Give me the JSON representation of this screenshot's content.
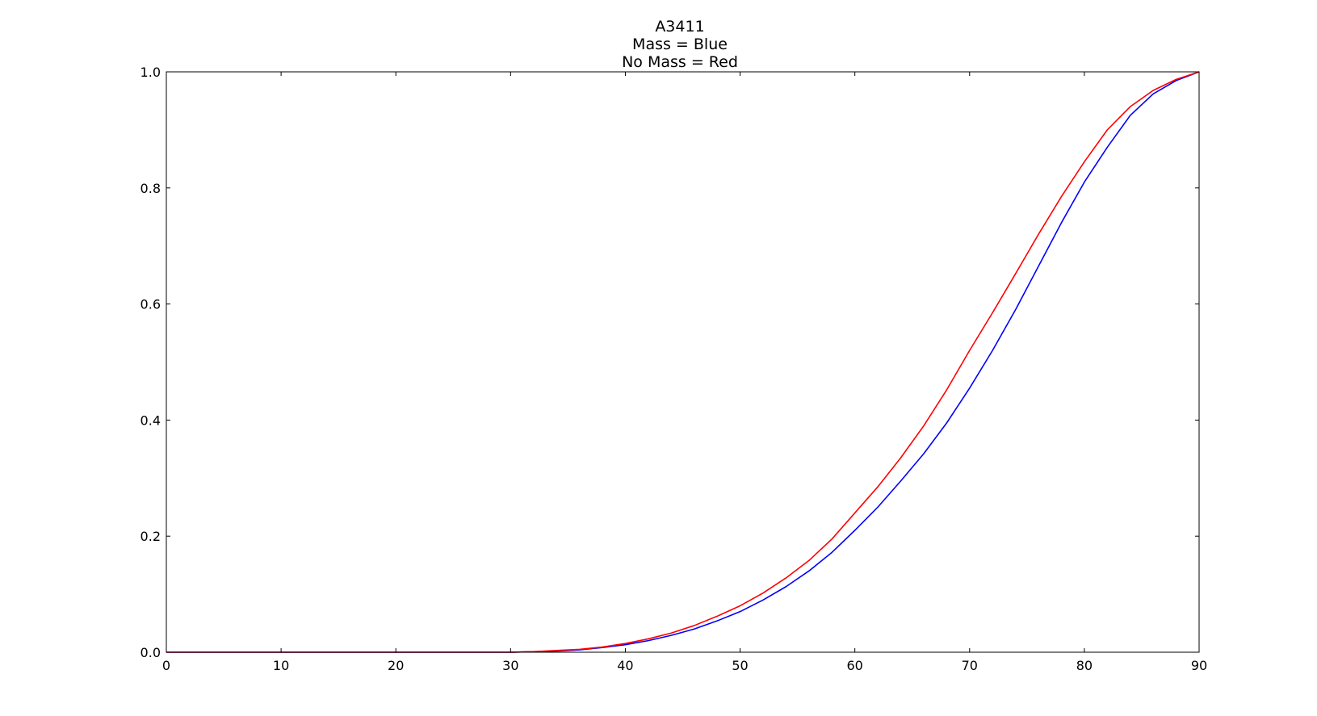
{
  "chart_data": {
    "type": "line",
    "title_lines": [
      "A3411",
      "Mass = Blue",
      "No Mass = Red"
    ],
    "xlabel": "",
    "ylabel": "",
    "xlim": [
      0,
      90
    ],
    "ylim": [
      0.0,
      1.0
    ],
    "x_ticks": [
      0,
      10,
      20,
      30,
      40,
      50,
      60,
      70,
      80,
      90
    ],
    "x_tick_labels": [
      "0",
      "10",
      "20",
      "30",
      "40",
      "50",
      "60",
      "70",
      "80",
      "90"
    ],
    "y_ticks": [
      0.0,
      0.2,
      0.4,
      0.6,
      0.8,
      1.0
    ],
    "y_tick_labels": [
      "0.0",
      "0.2",
      "0.4",
      "0.6",
      "0.8",
      "1.0"
    ],
    "grid": false,
    "legend": "none",
    "series": [
      {
        "color": "#0000ff",
        "points": [
          [
            0,
            0
          ],
          [
            10,
            0
          ],
          [
            20,
            0
          ],
          [
            30,
            0
          ],
          [
            32,
            0.001
          ],
          [
            34,
            0.002
          ],
          [
            36,
            0.004
          ],
          [
            38,
            0.008
          ],
          [
            40,
            0.013
          ],
          [
            42,
            0.02
          ],
          [
            44,
            0.029
          ],
          [
            46,
            0.04
          ],
          [
            48,
            0.054
          ],
          [
            50,
            0.07
          ],
          [
            52,
            0.09
          ],
          [
            54,
            0.113
          ],
          [
            56,
            0.14
          ],
          [
            58,
            0.172
          ],
          [
            60,
            0.21
          ],
          [
            62,
            0.25
          ],
          [
            64,
            0.295
          ],
          [
            66,
            0.342
          ],
          [
            68,
            0.395
          ],
          [
            70,
            0.455
          ],
          [
            72,
            0.52
          ],
          [
            74,
            0.59
          ],
          [
            76,
            0.665
          ],
          [
            78,
            0.74
          ],
          [
            80,
            0.81
          ],
          [
            82,
            0.87
          ],
          [
            84,
            0.925
          ],
          [
            86,
            0.962
          ],
          [
            88,
            0.985
          ],
          [
            90,
            1.0
          ]
        ]
      },
      {
        "color": "#ff0000",
        "points": [
          [
            0,
            0
          ],
          [
            10,
            0
          ],
          [
            20,
            0
          ],
          [
            30,
            0
          ],
          [
            32,
            0.001
          ],
          [
            34,
            0.003
          ],
          [
            36,
            0.005
          ],
          [
            38,
            0.009
          ],
          [
            40,
            0.015
          ],
          [
            42,
            0.023
          ],
          [
            44,
            0.033
          ],
          [
            46,
            0.046
          ],
          [
            48,
            0.062
          ],
          [
            50,
            0.08
          ],
          [
            52,
            0.102
          ],
          [
            54,
            0.128
          ],
          [
            56,
            0.158
          ],
          [
            58,
            0.195
          ],
          [
            60,
            0.24
          ],
          [
            62,
            0.285
          ],
          [
            64,
            0.335
          ],
          [
            66,
            0.39
          ],
          [
            68,
            0.452
          ],
          [
            70,
            0.52
          ],
          [
            72,
            0.585
          ],
          [
            74,
            0.652
          ],
          [
            76,
            0.72
          ],
          [
            78,
            0.785
          ],
          [
            80,
            0.845
          ],
          [
            82,
            0.9
          ],
          [
            84,
            0.94
          ],
          [
            86,
            0.968
          ],
          [
            88,
            0.987
          ],
          [
            90,
            1.0
          ]
        ]
      }
    ],
    "colors": {
      "mass": "#0000ff",
      "no_mass": "#ff0000",
      "axes": "#000000",
      "background": "#ffffff"
    }
  }
}
